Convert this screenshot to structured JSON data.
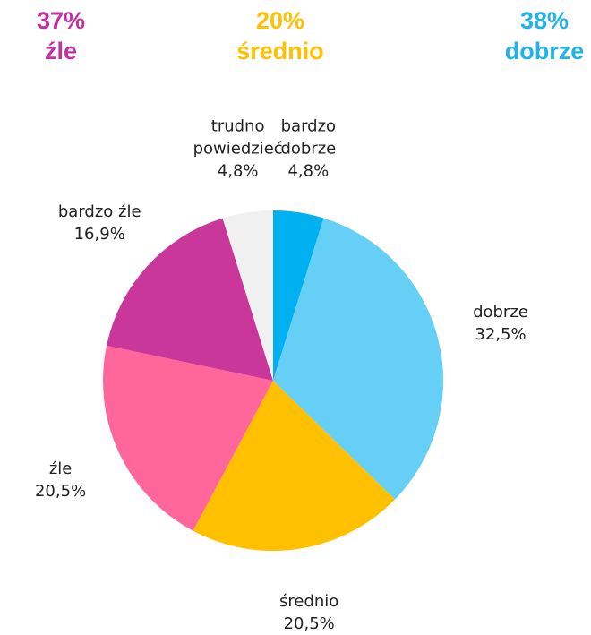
{
  "chart_data": {
    "type": "pie",
    "summary": [
      {
        "value_label": "37%",
        "label": "źle",
        "color": "#c62fa0"
      },
      {
        "value_label": "20%",
        "label": "średnio",
        "color": "#ffc000"
      },
      {
        "value_label": "38%",
        "label": "dobrze",
        "color": "#1fb3e8"
      }
    ],
    "categories": [
      "bardzo dobrze",
      "dobrze",
      "średnio",
      "źle",
      "bardzo źle",
      "trudno powiedzieć"
    ],
    "values": [
      4.8,
      32.5,
      20.5,
      20.5,
      16.9,
      4.8
    ],
    "value_labels": [
      "4,8%",
      "32,5%",
      "20,5%",
      "20,5%",
      "16,9%",
      "4,8%"
    ],
    "colors": [
      "#00b0f0",
      "#66cff5",
      "#ffc000",
      "#ff6699",
      "#c9379b",
      "#f0f0f0"
    ]
  }
}
